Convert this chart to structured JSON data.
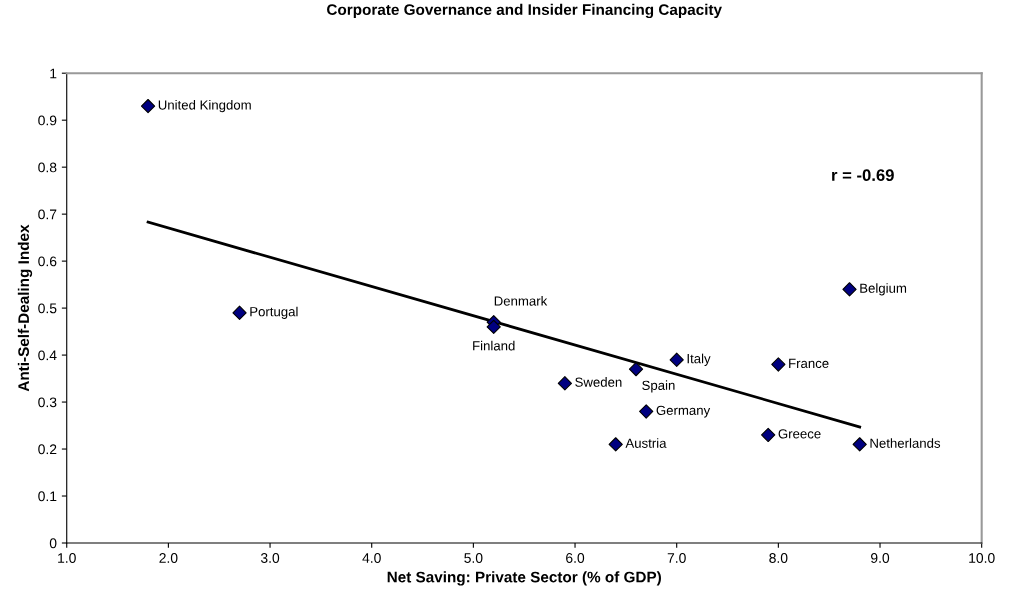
{
  "chart_data": {
    "type": "scatter",
    "title": "Corporate Governance and Insider Financing Capacity",
    "xlabel": "Net Saving: Private Sector (% of GDP)",
    "ylabel": "Anti-Self-Dealing Index",
    "series": [
      {
        "color": "#000080",
        "marker": "diamond",
        "x": [
          1.8,
          2.7,
          5.2,
          5.2,
          8.7,
          7.0,
          8.0,
          6.6,
          5.9,
          6.7,
          6.4,
          7.9,
          8.8
        ],
        "values": [
          0.93,
          0.49,
          0.47,
          0.46,
          0.54,
          0.39,
          0.38,
          0.37,
          0.34,
          0.28,
          0.21,
          0.23,
          0.21
        ]
      },
      {
        "type": "line",
        "color": "#000000",
        "line_style": "solid",
        "x": [
          1.8,
          8.8
        ],
        "values": [
          0.683,
          0.247
        ]
      }
    ],
    "annotations": [
      {
        "text": "United Kingdom",
        "x": 1.8,
        "y": 0.93
      },
      {
        "text": "Portugal",
        "x": 2.7,
        "y": 0.49
      },
      {
        "text": "Denmark",
        "x": 5.2,
        "y": 0.47
      },
      {
        "text": "Finland",
        "x": 5.2,
        "y": 0.46
      },
      {
        "text": "Belgium",
        "x": 8.7,
        "y": 0.54
      },
      {
        "text": "Italy",
        "x": 7.0,
        "y": 0.39
      },
      {
        "text": "France",
        "x": 8.0,
        "y": 0.38
      },
      {
        "text": "Spain",
        "x": 6.6,
        "y": 0.37
      },
      {
        "text": "Sweden",
        "x": 5.9,
        "y": 0.34
      },
      {
        "text": "Germany",
        "x": 6.7,
        "y": 0.28
      },
      {
        "text": "Austria",
        "x": 6.4,
        "y": 0.21
      },
      {
        "text": "Greece",
        "x": 7.9,
        "y": 0.23
      },
      {
        "text": "Netherlands",
        "x": 8.8,
        "y": 0.21
      },
      "r = -0.69"
    ],
    "xlim": [
      1.0,
      10.0
    ],
    "xticks": [
      {
        "value": 1,
        "label": "1.0"
      },
      {
        "value": 2,
        "label": "2.0"
      },
      {
        "value": 3,
        "label": "3.0"
      },
      {
        "value": 4,
        "label": "4.0"
      },
      {
        "value": 5,
        "label": "5.0"
      },
      {
        "value": 6,
        "label": "6.0"
      },
      {
        "value": 7,
        "label": "7.0"
      },
      {
        "value": 8,
        "label": "8.0"
      },
      {
        "value": 9,
        "label": "9.0"
      },
      {
        "value": 10,
        "label": "10.0"
      }
    ],
    "ylim": [
      0,
      1
    ],
    "yticks": [
      0,
      0.1,
      0.2,
      0.3,
      0.4,
      0.5,
      0.6,
      0.7,
      0.8,
      0.9,
      1
    ],
    "grid": false,
    "legend": false
  }
}
